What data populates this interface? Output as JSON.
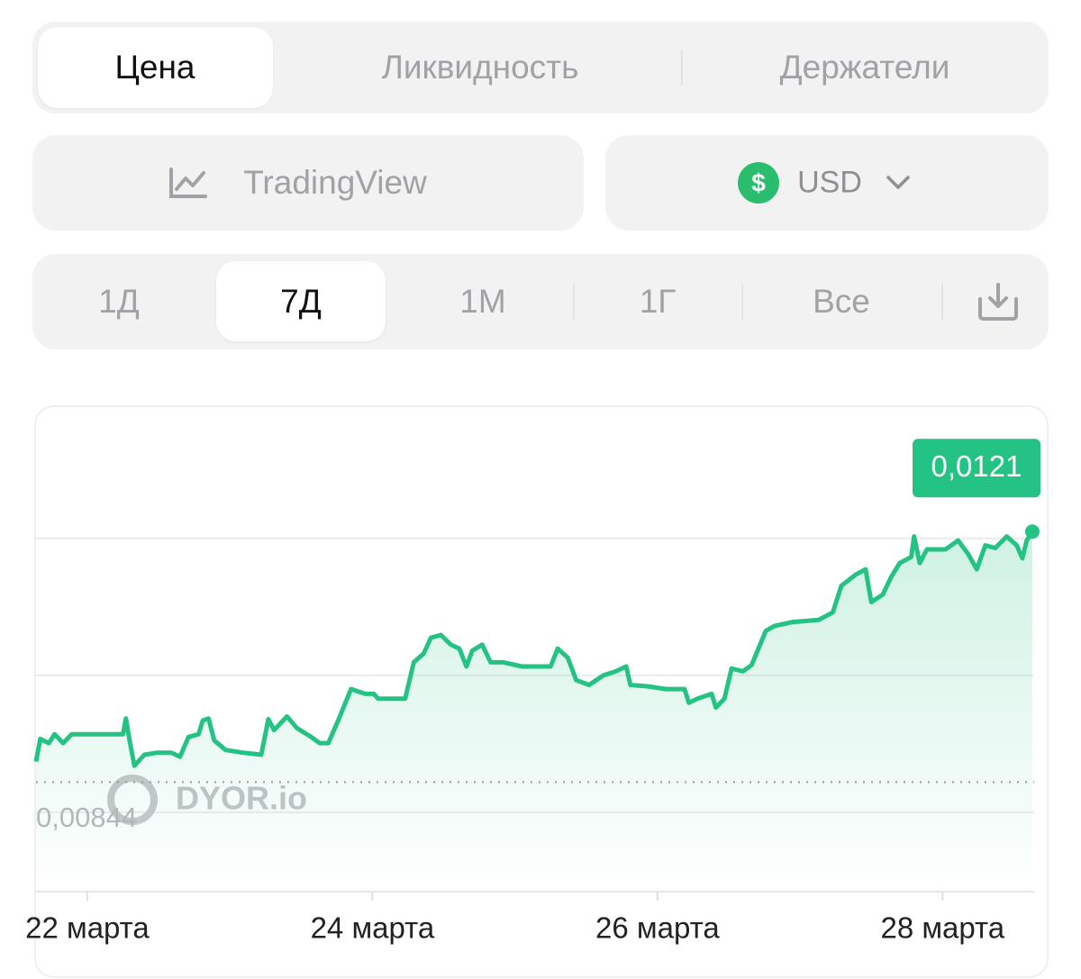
{
  "tabs": [
    "Цена",
    "Ликвидность",
    "Держатели"
  ],
  "source_button": "TradingView",
  "currency": {
    "symbol": "$",
    "code": "USD"
  },
  "periods": [
    "1Д",
    "7Д",
    "1М",
    "1Г",
    "Все"
  ],
  "chart_data": {
    "type": "line",
    "x": [
      21.64,
      21.67,
      21.73,
      21.77,
      21.83,
      21.89,
      22.02,
      22.15,
      22.25,
      22.27,
      22.3,
      22.33,
      22.4,
      22.49,
      22.59,
      22.65,
      22.71,
      22.78,
      22.81,
      22.85,
      22.89,
      22.97,
      23.09,
      23.22,
      23.27,
      23.31,
      23.4,
      23.47,
      23.57,
      23.63,
      23.69,
      23.76,
      23.85,
      23.95,
      24.01,
      24.04,
      24.23,
      24.29,
      24.36,
      24.41,
      24.48,
      24.55,
      24.61,
      24.66,
      24.7,
      24.77,
      24.83,
      24.92,
      25.05,
      25.18,
      25.25,
      25.3,
      25.37,
      25.43,
      25.52,
      25.62,
      25.71,
      25.78,
      25.81,
      25.93,
      26.06,
      26.19,
      26.22,
      26.28,
      26.38,
      26.41,
      26.47,
      26.52,
      26.6,
      26.66,
      26.76,
      26.82,
      26.95,
      27.13,
      27.23,
      27.29,
      27.39,
      27.46,
      27.5,
      27.58,
      27.64,
      27.7,
      27.78,
      27.8,
      27.84,
      27.89,
      28.02,
      28.11,
      28.18,
      28.24,
      28.3,
      28.37,
      28.45,
      28.52,
      28.56,
      28.59,
      28.63
    ],
    "series": [
      {
        "color": "#24c283",
        "values": [
          0.00874,
          0.00907,
          0.00901,
          0.00914,
          0.00901,
          0.00914,
          0.00914,
          0.00914,
          0.00914,
          0.00937,
          0.00901,
          0.00868,
          0.00884,
          0.00887,
          0.00887,
          0.00881,
          0.0091,
          0.00914,
          0.00934,
          0.00937,
          0.00905,
          0.00891,
          0.00887,
          0.00884,
          0.00936,
          0.0092,
          0.0094,
          0.00923,
          0.0091,
          0.00901,
          0.00901,
          0.00934,
          0.0098,
          0.00973,
          0.00973,
          0.00966,
          0.00966,
          0.01019,
          0.01032,
          0.01055,
          0.01059,
          0.01045,
          0.01039,
          0.01013,
          0.01036,
          0.01045,
          0.01019,
          0.01019,
          0.01013,
          0.01013,
          0.01013,
          0.01039,
          0.01026,
          0.00993,
          0.00986,
          0.01,
          0.01006,
          0.01013,
          0.00986,
          0.00984,
          0.0098,
          0.0098,
          0.0096,
          0.00966,
          0.00973,
          0.00953,
          0.00966,
          0.0101,
          0.01006,
          0.01015,
          0.01065,
          0.01072,
          0.01078,
          0.01081,
          0.01092,
          0.01131,
          0.01147,
          0.01155,
          0.01107,
          0.01118,
          0.01144,
          0.01164,
          0.01173,
          0.01203,
          0.01164,
          0.01184,
          0.01184,
          0.01197,
          0.01177,
          0.01155,
          0.0119,
          0.01186,
          0.01203,
          0.0119,
          0.01171,
          0.01197,
          0.0121
        ]
      }
    ],
    "xlim": [
      21.64,
      28.63
    ],
    "ylim": [
      0.00684,
      0.01388
    ],
    "xticks": [
      {
        "value": 22,
        "label": "22 марта"
      },
      {
        "value": 24,
        "label": "24 марта"
      },
      {
        "value": 26,
        "label": "26 марта"
      },
      {
        "value": 28,
        "label": "28 марта"
      }
    ],
    "ygrid": [
      0.008,
      0.01,
      0.012
    ],
    "current_price": {
      "value": 0.0121,
      "label": "0,0121"
    },
    "min_price": {
      "value": 0.00844,
      "label": "0,00844"
    },
    "watermark": "DYOR.io"
  }
}
